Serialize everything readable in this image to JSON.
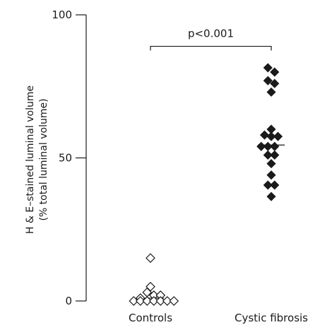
{
  "chart_data": {
    "type": "scatter",
    "title": "",
    "ylabel_lines": [
      "H & E–stained luminal volume",
      "(% total luminal volume)"
    ],
    "xlabel": "",
    "categories": [
      "Controls",
      "Cystic fibrosis"
    ],
    "y_ticks": [
      "0",
      "50",
      "100"
    ],
    "ylim": [
      0,
      100
    ],
    "grid": false,
    "groups": [
      {
        "category": "Controls",
        "marker": "open-diamond",
        "median": 1,
        "points": [
          {
            "offset": 0,
            "y": 15
          },
          {
            "offset": 0,
            "y": 5
          },
          {
            "offset": -0.5,
            "y": 3
          },
          {
            "offset": 0.5,
            "y": 2
          },
          {
            "offset": 1.5,
            "y": 2
          },
          {
            "offset": -1.5,
            "y": 1
          },
          {
            "offset": -2.5,
            "y": 0
          },
          {
            "offset": -1.5,
            "y": 0
          },
          {
            "offset": -0.5,
            "y": 0
          },
          {
            "offset": 0.5,
            "y": 0
          },
          {
            "offset": 1.5,
            "y": 0
          },
          {
            "offset": 2.5,
            "y": 0
          },
          {
            "offset": 3.5,
            "y": 0
          }
        ]
      },
      {
        "category": "Cystic fibrosis",
        "marker": "filled-diamond",
        "median": 54.5,
        "points": [
          {
            "offset": -0.5,
            "y": 81.5
          },
          {
            "offset": 0.5,
            "y": 80
          },
          {
            "offset": -0.5,
            "y": 77
          },
          {
            "offset": 0.5,
            "y": 76
          },
          {
            "offset": 0,
            "y": 73
          },
          {
            "offset": 0,
            "y": 60
          },
          {
            "offset": -1,
            "y": 58
          },
          {
            "offset": 0,
            "y": 57.5
          },
          {
            "offset": 1,
            "y": 57.5
          },
          {
            "offset": -1.5,
            "y": 54
          },
          {
            "offset": -0.5,
            "y": 54
          },
          {
            "offset": 0.5,
            "y": 54
          },
          {
            "offset": -0.5,
            "y": 51
          },
          {
            "offset": 0.5,
            "y": 51
          },
          {
            "offset": 0,
            "y": 48
          },
          {
            "offset": 0,
            "y": 44
          },
          {
            "offset": -0.5,
            "y": 40.5
          },
          {
            "offset": 0.5,
            "y": 40.5
          },
          {
            "offset": 0,
            "y": 36.5
          }
        ]
      }
    ],
    "significance": {
      "label": "p<0.001",
      "from": "Controls",
      "to": "Cystic fibrosis",
      "y": 89
    }
  }
}
